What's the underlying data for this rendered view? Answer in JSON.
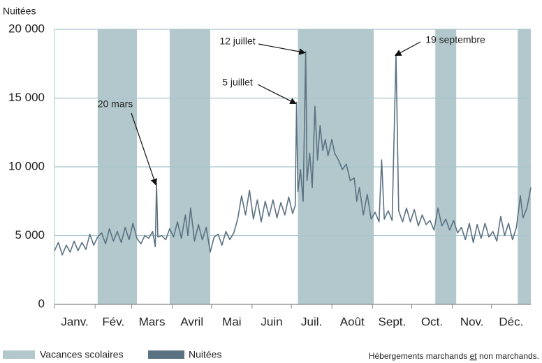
{
  "chart_data": {
    "type": "line",
    "ylabel": "Nuitées",
    "xlim": [
      1,
      365
    ],
    "xticks": [
      1,
      32,
      60,
      91,
      121,
      152,
      182,
      213,
      244,
      274,
      305,
      335
    ],
    "categories": [
      "Janv.",
      "Fév.",
      "Mars",
      "Avril",
      "Mai",
      "Juin",
      "Juil.",
      "Août",
      "Sept.",
      "Oct.",
      "Nov.",
      "Déc."
    ],
    "ylim": [
      0,
      20000
    ],
    "yticks": [
      0,
      {
        "value": 5000,
        "label": "5 000"
      },
      {
        "value": 10000,
        "label": "10 000"
      },
      {
        "value": 15000,
        "label": "15 000"
      },
      {
        "value": 20000,
        "label": "20 000"
      }
    ],
    "grid": true,
    "bands": {
      "name": "Vacances scolaires",
      "color": "#b3c8cc",
      "ranges": [
        [
          34,
          64
        ],
        [
          89,
          120
        ],
        [
          187,
          245
        ],
        [
          292,
          308
        ],
        [
          355,
          365
        ]
      ]
    },
    "x": [
      1,
      4,
      7,
      10,
      13,
      16,
      19,
      22,
      25,
      28,
      31,
      34,
      37,
      40,
      43,
      46,
      49,
      52,
      55,
      58,
      61,
      64,
      67,
      70,
      73,
      76,
      78,
      79,
      80,
      83,
      86,
      89,
      92,
      95,
      98,
      101,
      103,
      105,
      108,
      111,
      114,
      117,
      120,
      123,
      126,
      129,
      132,
      135,
      138,
      141,
      144,
      147,
      150,
      153,
      156,
      159,
      162,
      165,
      168,
      171,
      174,
      177,
      180,
      183,
      185,
      186,
      187,
      189,
      191,
      193,
      194,
      196,
      198,
      200,
      202,
      204,
      206,
      208,
      210,
      213,
      215,
      218,
      221,
      224,
      227,
      230,
      232,
      234,
      237,
      240,
      243,
      246,
      249,
      251,
      253,
      256,
      259,
      262,
      264,
      267,
      270,
      273,
      276,
      279,
      282,
      285,
      288,
      291,
      294,
      297,
      300,
      303,
      306,
      309,
      312,
      315,
      318,
      321,
      324,
      327,
      330,
      333,
      336,
      339,
      342,
      345,
      348,
      351,
      354,
      357,
      359,
      362,
      365
    ],
    "series": [
      {
        "name": "Nuitées",
        "color": "#5b7282",
        "values": [
          3900,
          4500,
          3600,
          4300,
          3800,
          4600,
          3900,
          4500,
          4000,
          5100,
          4300,
          4900,
          5200,
          4400,
          5500,
          4600,
          5300,
          4500,
          5600,
          4700,
          5900,
          4800,
          4400,
          5000,
          4800,
          5300,
          4200,
          8800,
          4900,
          5000,
          4700,
          5500,
          4900,
          6000,
          4800,
          6500,
          5000,
          7000,
          4600,
          5800,
          4700,
          5600,
          3800,
          4900,
          5100,
          4300,
          5300,
          4700,
          5200,
          6200,
          7900,
          6500,
          8300,
          6200,
          7600,
          6000,
          7500,
          6400,
          7600,
          6300,
          7400,
          6500,
          7800,
          6600,
          7200,
          14700,
          8200,
          9800,
          7500,
          18400,
          9000,
          11000,
          8500,
          14400,
          10500,
          13000,
          11200,
          12000,
          10800,
          12000,
          11000,
          10500,
          9800,
          10200,
          9000,
          9200,
          7500,
          8500,
          6500,
          8000,
          6200,
          6700,
          6000,
          10500,
          6200,
          6800,
          6100,
          18200,
          6800,
          6000,
          7000,
          6000,
          6900,
          5700,
          6500,
          5800,
          6100,
          5400,
          7000,
          5700,
          6200,
          5400,
          6100,
          5200,
          5600,
          4700,
          5900,
          4500,
          5800,
          4800,
          5900,
          4900,
          5300,
          4600,
          6400,
          5000,
          5900,
          4700,
          5600,
          7900,
          6300,
          7000,
          8500
        ]
      }
    ],
    "annotations": [
      {
        "text": "20 mars",
        "x": 79,
        "y": 8800
      },
      {
        "text": "5 juillet",
        "x": 186,
        "y": 14700
      },
      {
        "text": "12 juillet",
        "x": 193,
        "y": 18400
      },
      {
        "text": "19 septembre",
        "x": 262,
        "y": 18200
      }
    ],
    "note": [
      "Hébergements marchands ",
      "et",
      " non marchands."
    ]
  }
}
